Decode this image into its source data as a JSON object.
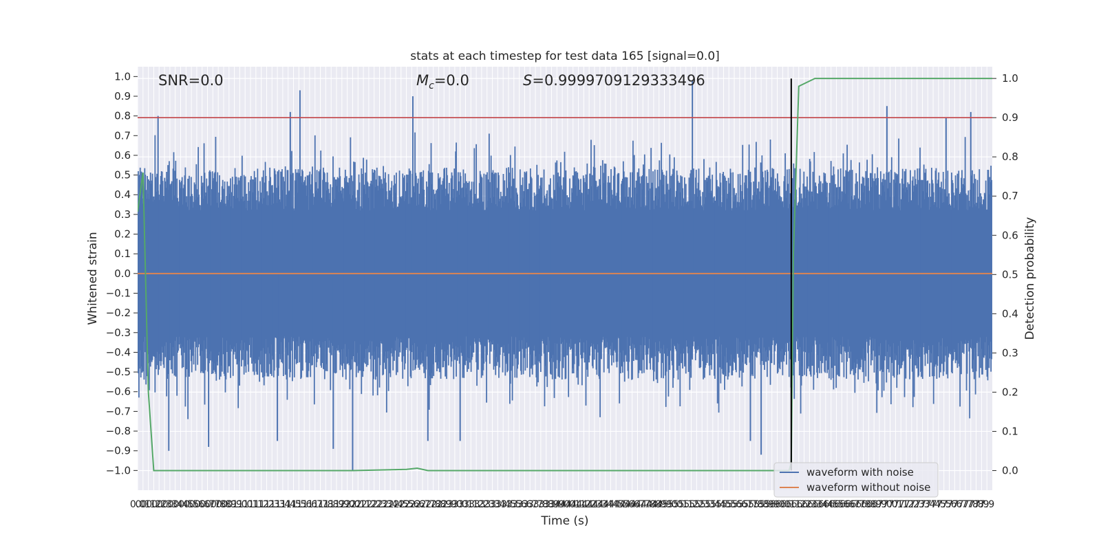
{
  "chart_data": {
    "type": "line",
    "title": "stats at each timestep for test data 165 [signal=0.0]",
    "xlabel": "Time (s)",
    "ylabel": "Whitened strain",
    "y2label": "Detection probability",
    "xlim": [
      0.0,
      7.95
    ],
    "ylim": [
      -1.1,
      1.05
    ],
    "y2lim": [
      -0.05,
      1.03
    ],
    "x_ticks": [
      0.0,
      0.05,
      0.1,
      0.15,
      0.2,
      0.25,
      0.3,
      0.35,
      0.4,
      0.45,
      0.5,
      0.55,
      0.6,
      0.65,
      0.7,
      0.75,
      0.8,
      0.85,
      0.9,
      0.95,
      1.0,
      1.05,
      1.1,
      1.15,
      1.2,
      1.25,
      1.3,
      1.35,
      1.4,
      1.45,
      1.5,
      1.55,
      1.6,
      1.65,
      1.7,
      1.75,
      1.8,
      1.85,
      1.9,
      1.95,
      2.0,
      2.05,
      2.1,
      2.15,
      2.2,
      2.25,
      2.3,
      2.35,
      2.4,
      2.45,
      2.5,
      2.55,
      2.6,
      2.65,
      2.7,
      2.75,
      2.8,
      2.85,
      2.9,
      2.95,
      3.0,
      3.05,
      3.1,
      3.15,
      3.2,
      3.25,
      3.3,
      3.35,
      3.4,
      3.45,
      3.5,
      3.55,
      3.6,
      3.65,
      3.7,
      3.75,
      3.8,
      3.85,
      3.9,
      3.95,
      4.0,
      4.05,
      4.1,
      4.15,
      4.2,
      4.25,
      4.3,
      4.35,
      4.4,
      4.45,
      4.5,
      4.55,
      4.6,
      4.65,
      4.7,
      4.75,
      4.8,
      4.85,
      4.9,
      4.95,
      5.0,
      5.05,
      5.1,
      5.15,
      5.2,
      5.25,
      5.3,
      5.35,
      5.4,
      5.45,
      5.5,
      5.55,
      5.6,
      5.65,
      5.7,
      5.75,
      5.8,
      5.85,
      5.9,
      5.95,
      6.0,
      6.05,
      6.1,
      6.15,
      6.2,
      6.25,
      6.3,
      6.35,
      6.4,
      6.45,
      6.5,
      6.55,
      6.6,
      6.65,
      6.7,
      6.75,
      6.8,
      6.85,
      6.9,
      6.95,
      7.0,
      7.05,
      7.1,
      7.15,
      7.2,
      7.25,
      7.3,
      7.35,
      7.4,
      7.45,
      7.5,
      7.55,
      7.6,
      7.65,
      7.7,
      7.75,
      7.8,
      7.85,
      7.9
    ],
    "y_ticks": [
      -1.0,
      -0.9,
      -0.8,
      -0.7,
      -0.6,
      -0.5,
      -0.4,
      -0.3,
      -0.2,
      -0.1,
      0.0,
      0.1,
      0.2,
      0.3,
      0.4,
      0.5,
      0.6,
      0.7,
      0.8,
      0.9,
      1.0
    ],
    "y2_ticks": [
      0.0,
      0.1,
      0.2,
      0.3,
      0.4,
      0.5,
      0.6,
      0.7,
      0.8,
      0.9,
      1.0
    ],
    "grid": true,
    "legend_position": "lower-right",
    "annotations": {
      "snr": "SNR=0.0",
      "mc_prefix": "M",
      "mc_sub": "c",
      "mc_suffix": "=0.0",
      "s_prefix": "S",
      "s_suffix": "=0.9999709129333496"
    },
    "series": [
      {
        "name": "waveform with noise",
        "color": "#4c72b0",
        "axis": "left",
        "description_level": "dense noise, typical envelope ±0.35 to ±0.6",
        "peaks": [
          {
            "x": 0.19,
            "y": 0.8
          },
          {
            "x": 1.42,
            "y": 0.82
          },
          {
            "x": 1.51,
            "y": 0.93
          },
          {
            "x": 2.56,
            "y": 0.9
          },
          {
            "x": 5.16,
            "y": 0.98
          },
          {
            "x": 6.97,
            "y": 0.85
          },
          {
            "x": 7.75,
            "y": 0.82
          },
          {
            "x": 7.52,
            "y": 0.79
          }
        ],
        "troughs": [
          {
            "x": 0.29,
            "y": -0.9
          },
          {
            "x": 0.66,
            "y": -0.88
          },
          {
            "x": 1.3,
            "y": -0.85
          },
          {
            "x": 1.82,
            "y": -0.89
          },
          {
            "x": 2.0,
            "y": -1.0
          },
          {
            "x": 2.7,
            "y": -0.85
          },
          {
            "x": 3.0,
            "y": -0.85
          },
          {
            "x": 5.8,
            "y": -0.92
          },
          {
            "x": 5.7,
            "y": -0.85
          }
        ]
      },
      {
        "name": "waveform without noise",
        "color": "#dd8452",
        "axis": "left",
        "x": [
          0.0,
          7.95
        ],
        "y": [
          0.0,
          0.0
        ]
      },
      {
        "name": "",
        "color": "#55a868",
        "axis": "right",
        "x": [
          0.0,
          0.05,
          0.1,
          0.15,
          0.2,
          2.0,
          2.5,
          2.6,
          2.7,
          5.0,
          6.06,
          6.08,
          6.1,
          6.15,
          6.3,
          7.95
        ],
        "y": [
          0.66,
          0.76,
          0.2,
          0.0,
          0.0,
          0.0,
          0.003,
          0.006,
          0.0,
          0.0,
          0.0,
          0.02,
          0.55,
          0.98,
          1.0,
          1.0
        ]
      }
    ],
    "threshold": {
      "value": 0.9,
      "axis": "right",
      "color": "#c44e52"
    },
    "marker_line": {
      "x": 6.08,
      "color": "#000000",
      "y_from": -1.0,
      "y_to": 0.99
    }
  }
}
